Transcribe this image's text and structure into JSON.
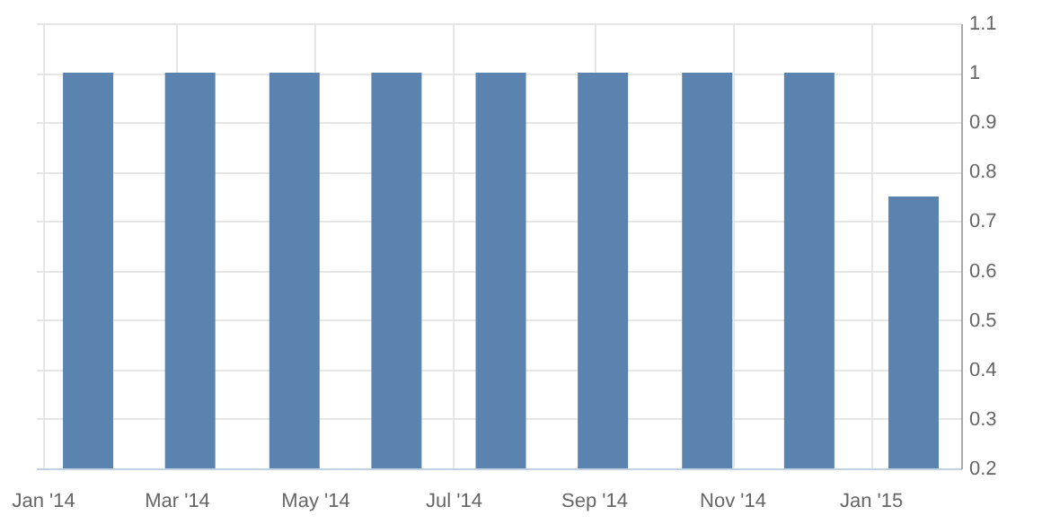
{
  "chart_data": {
    "type": "bar",
    "x": [
      "2014-01-21",
      "2014-03-07",
      "2014-04-22",
      "2014-06-06",
      "2014-07-22",
      "2014-09-05",
      "2014-10-21",
      "2014-12-05",
      "2015-01-20"
    ],
    "values": [
      1,
      1,
      1,
      1,
      1,
      1,
      1,
      1,
      0.75
    ],
    "color": "#5b83b0",
    "xlim": [
      "2013-12-29",
      "2015-02-10"
    ],
    "xticks": [
      {
        "value": "2014-01-01",
        "label": "Jan '14"
      },
      {
        "value": "2014-03-01",
        "label": "Mar '14"
      },
      {
        "value": "2014-05-01",
        "label": "May '14"
      },
      {
        "value": "2014-07-01",
        "label": "Jul '14"
      },
      {
        "value": "2014-09-01",
        "label": "Sep '14"
      },
      {
        "value": "2014-11-01",
        "label": "Nov '14"
      },
      {
        "value": "2015-01-01",
        "label": "Jan '15"
      }
    ],
    "ylim": [
      0.2,
      1.1
    ],
    "yticks": [
      0.2,
      0.3,
      0.4,
      0.5,
      0.6,
      0.7,
      0.8,
      0.9,
      1,
      1.1
    ],
    "grid": true
  }
}
